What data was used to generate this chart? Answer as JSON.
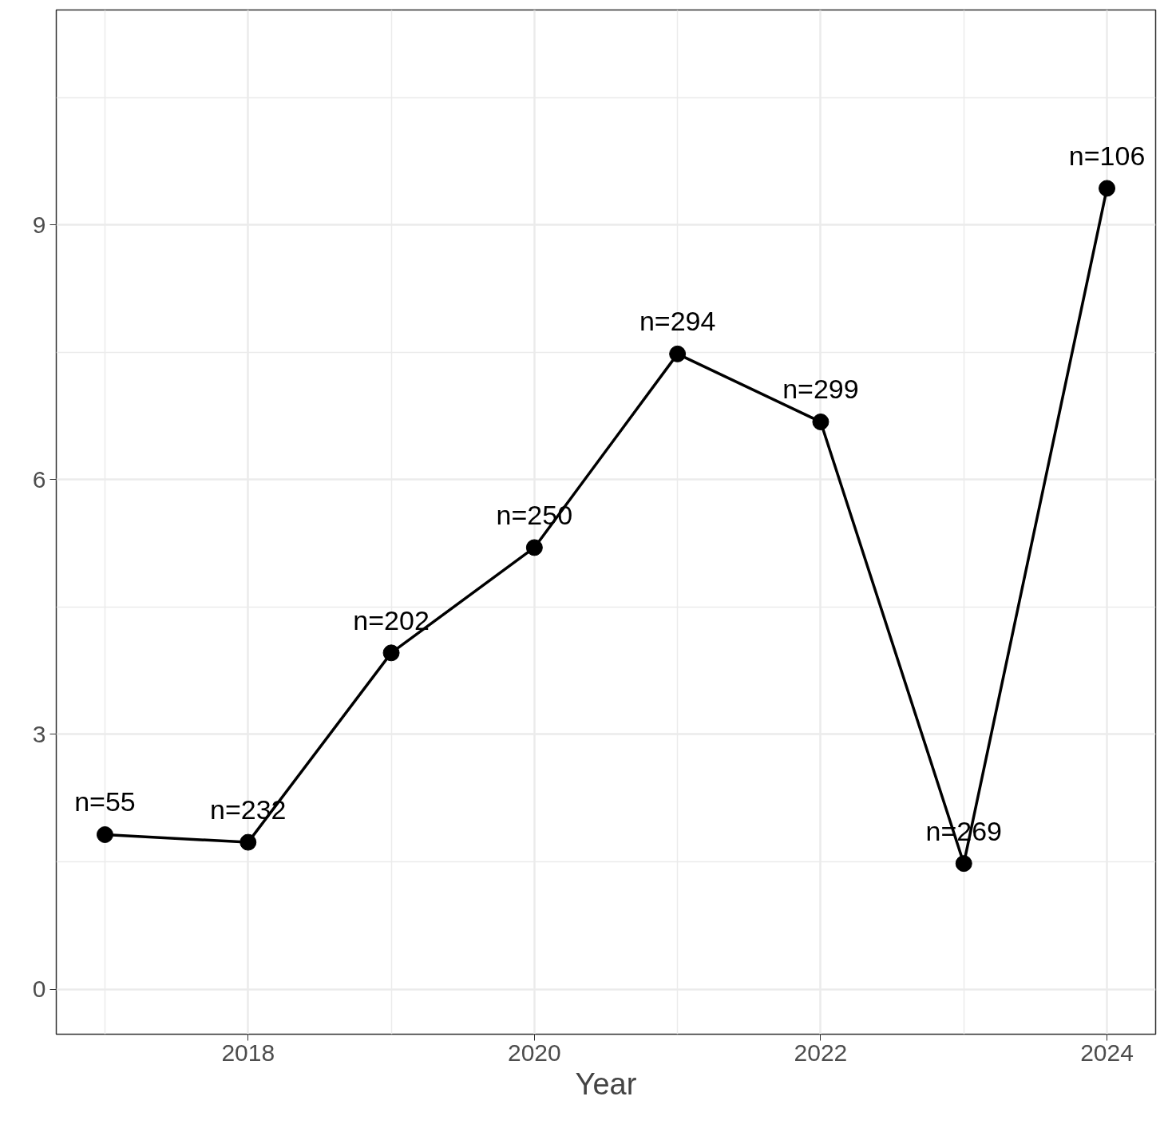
{
  "chart_data": {
    "type": "line",
    "xlabel": "Year",
    "x": [
      2017,
      2018,
      2019,
      2020,
      2021,
      2022,
      2023,
      2024
    ],
    "series": [
      {
        "color": "#000000",
        "values": [
          1.82,
          1.73,
          3.96,
          5.2,
          7.48,
          6.68,
          1.48,
          9.43
        ]
      }
    ],
    "annotations": [
      {
        "text": "n=55",
        "x": 2017,
        "y": 1.82
      },
      {
        "text": "n=232",
        "x": 2018,
        "y": 1.73
      },
      {
        "text": "n=202",
        "x": 2019,
        "y": 3.96
      },
      {
        "text": "n=250",
        "x": 2020,
        "y": 5.2
      },
      {
        "text": "n=294",
        "x": 2021,
        "y": 7.48
      },
      {
        "text": "n=299",
        "x": 2022,
        "y": 6.68
      },
      {
        "text": "n=269",
        "x": 2023,
        "y": 1.48
      },
      {
        "text": "n=106",
        "x": 2024,
        "y": 9.43
      }
    ],
    "xlim": [
      2016.66,
      2024.34
    ],
    "ylim": [
      -0.53,
      11.53
    ],
    "xticks": [
      2018,
      2020,
      2022,
      2024
    ],
    "yticks": [
      0,
      3,
      6,
      9
    ],
    "grid": true,
    "marker": "circle",
    "line_style": "solid"
  }
}
